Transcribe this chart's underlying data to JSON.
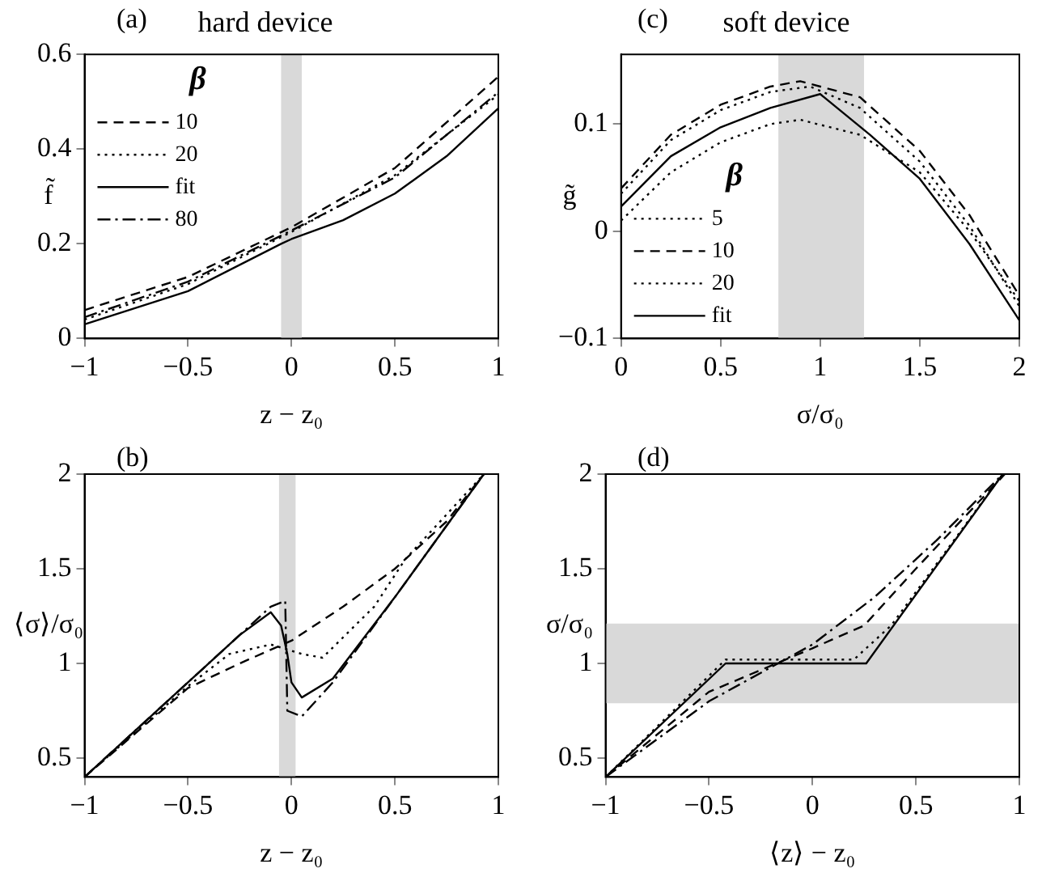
{
  "chart_data": [
    {
      "type": "line",
      "title": "hard device",
      "xlabel": "z − z₀",
      "ylabel": "f̃",
      "annotations": [
        "(a)"
      ],
      "legend_title": "β",
      "legend": "top left",
      "grid": false,
      "xlim": [
        -1,
        1
      ],
      "xticks": [
        -1,
        -0.5,
        0,
        0.5,
        1
      ],
      "ylim": [
        0,
        0.6
      ],
      "yticks": [
        0,
        0.2,
        0.4,
        0.6
      ],
      "bands": [
        {
          "axis": "x",
          "from": -0.05,
          "to": 0.05,
          "color": "#d9d9d9"
        }
      ],
      "series": [
        {
          "name": "10",
          "color": "#000000",
          "line_style": "dashed",
          "x": [
            -1,
            -0.5,
            0,
            0.5,
            1
          ],
          "values": [
            0.06,
            0.13,
            0.235,
            0.36,
            0.553
          ]
        },
        {
          "name": "20",
          "color": "#000000",
          "line_style": "dotted",
          "x": [
            -1,
            -0.5,
            0,
            0.5,
            1
          ],
          "values": [
            0.04,
            0.115,
            0.225,
            0.345,
            0.515
          ]
        },
        {
          "name": "fit",
          "color": "#000000",
          "line_style": "solid",
          "x": [
            -1,
            -0.5,
            -0.05,
            0,
            0.25,
            0.5,
            0.75,
            1
          ],
          "values": [
            0.03,
            0.1,
            0.2,
            0.21,
            0.25,
            0.306,
            0.385,
            0.486
          ]
        },
        {
          "name": "80",
          "color": "#000000",
          "line_style": "dashdot",
          "x": [
            -1,
            -0.5,
            0,
            0.5,
            1
          ],
          "values": [
            0.045,
            0.12,
            0.228,
            0.34,
            0.52
          ]
        }
      ]
    },
    {
      "type": "line",
      "title": "soft device",
      "xlabel": "σ/σ₀",
      "ylabel": "g̃",
      "annotations": [
        "(c)"
      ],
      "legend_title": "β",
      "legend": "bottom left",
      "grid": false,
      "xlim": [
        0,
        2
      ],
      "xticks": [
        0,
        0.5,
        1,
        1.5,
        2
      ],
      "ylim": [
        -0.1,
        0.165
      ],
      "yticks": [
        -0.1,
        0,
        0.1
      ],
      "bands": [
        {
          "axis": "x",
          "from": 0.79,
          "to": 1.22,
          "color": "#d9d9d9"
        }
      ],
      "series": [
        {
          "name": "5",
          "color": "#000000",
          "line_style": "dotted",
          "x": [
            0,
            0.25,
            0.5,
            0.75,
            0.9,
            1.2,
            1.5,
            1.75,
            2
          ],
          "values": [
            0.01,
            0.055,
            0.083,
            0.1,
            0.104,
            0.09,
            0.055,
            0.0,
            -0.065
          ]
        },
        {
          "name": "10",
          "color": "#000000",
          "line_style": "dashed",
          "x": [
            0,
            0.25,
            0.5,
            0.75,
            0.9,
            1.2,
            1.5,
            1.75,
            2
          ],
          "values": [
            0.04,
            0.09,
            0.118,
            0.135,
            0.14,
            0.125,
            0.075,
            0.015,
            -0.06
          ]
        },
        {
          "name": "20",
          "color": "#000000",
          "line_style": "dotted",
          "x": [
            0,
            0.25,
            0.5,
            0.75,
            0.95,
            1.2,
            1.5,
            1.75,
            2
          ],
          "values": [
            0.035,
            0.085,
            0.113,
            0.13,
            0.135,
            0.115,
            0.065,
            0.005,
            -0.07
          ]
        },
        {
          "name": "fit",
          "color": "#000000",
          "line_style": "solid",
          "x": [
            0,
            0.25,
            0.5,
            0.75,
            1,
            1.25,
            1.5,
            1.75,
            2
          ],
          "values": [
            0.023,
            0.07,
            0.097,
            0.115,
            0.128,
            0.09,
            0.049,
            -0.012,
            -0.083
          ]
        }
      ]
    },
    {
      "type": "line",
      "xlabel": "z − z₀",
      "ylabel": "⟨σ⟩/σ₀",
      "annotations": [
        "(b)"
      ],
      "grid": false,
      "xlim": [
        -1,
        1
      ],
      "xticks": [
        -1,
        -0.5,
        0,
        0.5,
        1
      ],
      "ylim": [
        0.4,
        2
      ],
      "yticks": [
        0.5,
        1,
        1.5,
        2
      ],
      "bands": [
        {
          "axis": "x",
          "from": -0.06,
          "to": 0.02,
          "color": "#d9d9d9"
        }
      ],
      "series": [
        {
          "color": "#000000",
          "line_style": "dashed",
          "x": [
            -1,
            -0.5,
            -0.25,
            0,
            0.25,
            0.5,
            0.75,
            0.93
          ],
          "values": [
            0.4,
            0.87,
            1.0,
            1.12,
            1.3,
            1.5,
            1.75,
            2
          ]
        },
        {
          "color": "#000000",
          "line_style": "dotted",
          "x": [
            -1,
            -0.5,
            -0.3,
            -0.1,
            0.05,
            0.15,
            0.4,
            0.55,
            0.93
          ],
          "values": [
            0.4,
            0.88,
            1.05,
            1.1,
            1.05,
            1.03,
            1.3,
            1.55,
            2
          ]
        },
        {
          "color": "#000000",
          "line_style": "solid",
          "x": [
            -1,
            -0.5,
            -0.25,
            -0.1,
            -0.05,
            -0.02,
            0,
            0.05,
            0.2,
            0.5,
            0.93
          ],
          "values": [
            0.4,
            0.9,
            1.15,
            1.27,
            1.2,
            1.05,
            0.9,
            0.82,
            0.92,
            1.35,
            2
          ]
        },
        {
          "color": "#000000",
          "line_style": "dashdot",
          "x": [
            -1,
            -0.5,
            -0.1,
            -0.03,
            -0.02,
            0.05,
            0.2,
            0.5,
            0.93
          ],
          "values": [
            0.4,
            0.9,
            1.3,
            1.33,
            0.75,
            0.72,
            0.9,
            1.35,
            2
          ]
        }
      ]
    },
    {
      "type": "line",
      "xlabel": "⟨z⟩ − z₀",
      "ylabel": "σ/σ₀",
      "annotations": [
        "(d)"
      ],
      "grid": false,
      "xlim": [
        -1,
        1
      ],
      "xticks": [
        -1,
        -0.5,
        0,
        0.5,
        1
      ],
      "ylim": [
        0.4,
        2
      ],
      "yticks": [
        0.5,
        1,
        1.5,
        2
      ],
      "bands": [
        {
          "axis": "y",
          "from": 0.79,
          "to": 1.21,
          "color": "#d9d9d9"
        }
      ],
      "series": [
        {
          "color": "#000000",
          "line_style": "dashed",
          "x": [
            -1,
            -0.5,
            0,
            0.25,
            0.5,
            0.93
          ],
          "values": [
            0.4,
            0.85,
            1.08,
            1.2,
            1.5,
            2
          ]
        },
        {
          "color": "#000000",
          "line_style": "dotted",
          "x": [
            -1,
            -0.42,
            0.2,
            0.38,
            0.92
          ],
          "values": [
            0.4,
            1.02,
            1.02,
            1.2,
            2
          ]
        },
        {
          "color": "#000000",
          "line_style": "solid",
          "x": [
            -1,
            -0.42,
            0.26,
            0.92
          ],
          "values": [
            0.4,
            1,
            1,
            2
          ]
        },
        {
          "color": "#000000",
          "line_style": "dashdot",
          "x": [
            -1,
            -0.5,
            0,
            0.3,
            0.6,
            0.92
          ],
          "values": [
            0.4,
            0.8,
            1.1,
            1.35,
            1.65,
            2
          ]
        }
      ]
    }
  ]
}
